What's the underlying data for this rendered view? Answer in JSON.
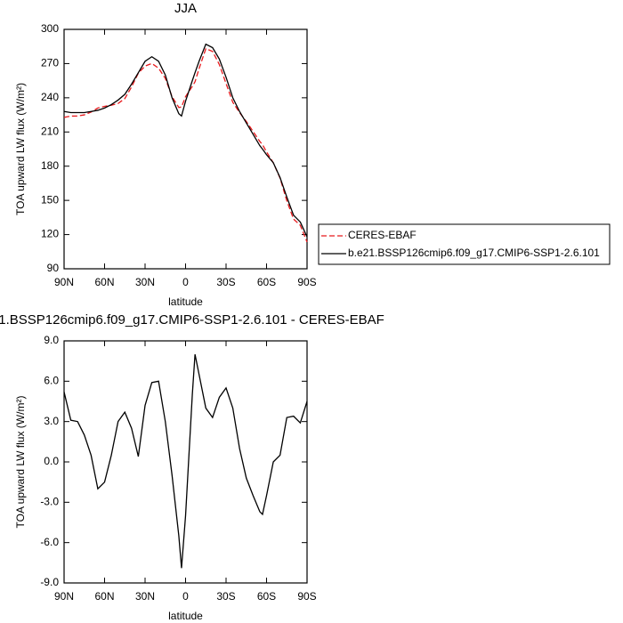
{
  "chart_data": [
    {
      "type": "line",
      "title": "JJA",
      "x_label": "latitude",
      "y_label": "TOA upward LW flux (W/m²)",
      "x": [
        90,
        85,
        80,
        75,
        70,
        65,
        60,
        55,
        50,
        45,
        40,
        35,
        30,
        25,
        20,
        15,
        10,
        5,
        3,
        0,
        -5,
        -7,
        -10,
        -15,
        -20,
        -25,
        -30,
        -35,
        -40,
        -45,
        -50,
        -55,
        -57,
        -60,
        -65,
        -70,
        -75,
        -80,
        -85,
        -90
      ],
      "xlim": [
        90,
        -90
      ],
      "xticks": [
        {
          "value": 90,
          "label": "90N"
        },
        {
          "value": 60,
          "label": "60N"
        },
        {
          "value": 30,
          "label": "30N"
        },
        0,
        {
          "value": -30,
          "label": "30S"
        },
        {
          "value": -60,
          "label": "60S"
        },
        {
          "value": -90,
          "label": "90S"
        }
      ],
      "ylim": [
        90,
        300
      ],
      "yticks": [
        90,
        120,
        150,
        180,
        210,
        240,
        270,
        300
      ],
      "series": [
        {
          "name": "CERES-EBAF",
          "color": "#e8191c",
          "line_style": "dashed",
          "values": [
            222.8,
            223.9,
            224,
            225,
            227.5,
            231,
            232.5,
            233.5,
            235,
            239.3,
            249.5,
            261.6,
            267.8,
            270.1,
            266,
            257,
            241,
            231.5,
            231.9,
            241,
            250,
            254,
            265.5,
            283,
            280.7,
            269.2,
            252.5,
            236,
            227,
            219.2,
            210.5,
            201.7,
            198.9,
            192.5,
            183,
            169.5,
            149.7,
            133.6,
            128.1,
            113.5
          ]
        },
        {
          "name": "b.e21.BSSP126cmip6.f09_g17.CMIP6-SSP1-2.6.101",
          "color": "#000000",
          "line_style": "solid",
          "values": [
            228,
            227,
            227,
            227,
            228,
            229,
            231,
            234,
            238,
            243,
            252,
            262,
            272,
            276,
            272,
            260,
            240,
            226,
            224,
            237,
            255,
            262,
            272,
            287,
            284,
            274,
            258,
            240,
            228,
            218,
            208,
            198,
            195,
            190,
            183,
            170,
            153,
            137,
            131,
            118
          ]
        }
      ]
    },
    {
      "type": "line",
      "title": "1.BSSP126cmip6.f09_g17.CMIP6-SSP1-2.6.101 - CERES-EBAF",
      "x_label": "latitude",
      "y_label": "TOA upward LW flux (W/m²)",
      "x": [
        90,
        85,
        80,
        75,
        70,
        65,
        60,
        55,
        50,
        45,
        40,
        35,
        30,
        25,
        20,
        15,
        10,
        5,
        3,
        0,
        -5,
        -7,
        -10,
        -15,
        -20,
        -25,
        -30,
        -35,
        -40,
        -45,
        -50,
        -55,
        -57,
        -60,
        -65,
        -70,
        -75,
        -80,
        -85,
        -90
      ],
      "xlim": [
        90,
        -90
      ],
      "xticks": [
        {
          "value": 90,
          "label": "90N"
        },
        {
          "value": 60,
          "label": "60N"
        },
        {
          "value": 30,
          "label": "30N"
        },
        0,
        {
          "value": -30,
          "label": "30S"
        },
        {
          "value": -60,
          "label": "60S"
        },
        {
          "value": -90,
          "label": "90S"
        }
      ],
      "ylim": [
        -9,
        9
      ],
      "yticks": [
        {
          "value": -9,
          "label": "-9.0"
        },
        {
          "value": -6,
          "label": "-6.0"
        },
        {
          "value": -3,
          "label": "-3.0"
        },
        {
          "value": 0,
          "label": "0.0"
        },
        {
          "value": 3,
          "label": "3.0"
        },
        {
          "value": 6,
          "label": "6.0"
        },
        {
          "value": 9,
          "label": "9.0"
        }
      ],
      "color": "#000000",
      "values": [
        5.2,
        3.1,
        3.0,
        2.0,
        0.5,
        -2.0,
        -1.5,
        0.5,
        3.0,
        3.7,
        2.5,
        0.4,
        4.2,
        5.9,
        6.0,
        3.0,
        -1.0,
        -5.5,
        -7.9,
        -4.0,
        5.0,
        8.0,
        6.5,
        4.0,
        3.3,
        4.8,
        5.5,
        4.0,
        1.0,
        -1.2,
        -2.5,
        -3.7,
        -3.9,
        -2.5,
        0.0,
        0.5,
        3.3,
        3.4,
        2.9,
        4.5
      ]
    }
  ]
}
